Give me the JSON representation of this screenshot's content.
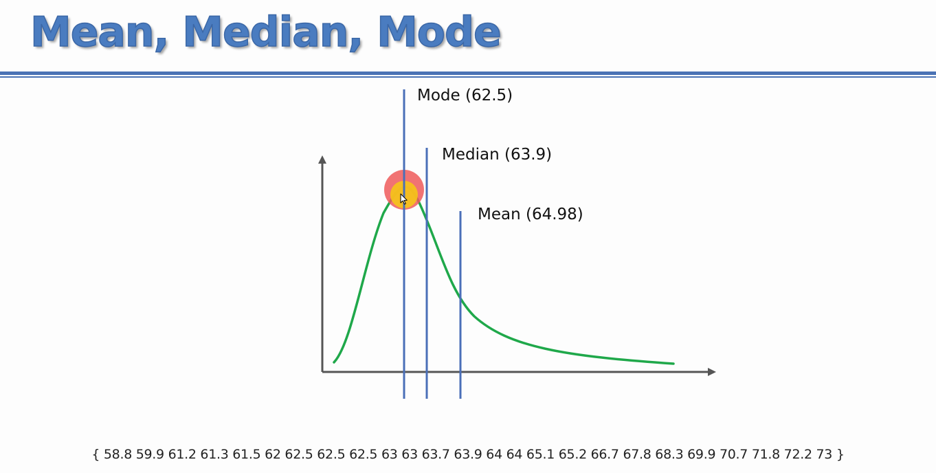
{
  "title": "Mean, Median, Mode",
  "labels": {
    "mode": "Mode (62.5)",
    "median": "Median (63.9)",
    "mean": "Mean (64.98)"
  },
  "dataset": "{ 58.8 59.9 61.2 61.3 61.5 62 62.5 62.5 62.5 63 63 63.7 63.9 64 64 65.1 65.2 66.7 67.8 68.3 69.9 70.7 71.8 72.2 73 }",
  "colors": {
    "title": "#4a7cc0",
    "rule": "#4a72b5",
    "curve": "#1fa84a",
    "marker_line": "#4a6fb8",
    "axis": "#555555",
    "cursor_highlight_outer": "#ef5a5a",
    "cursor_highlight_inner": "#f5c518"
  },
  "icons": {
    "cursor": "mouse-pointer-icon"
  }
}
